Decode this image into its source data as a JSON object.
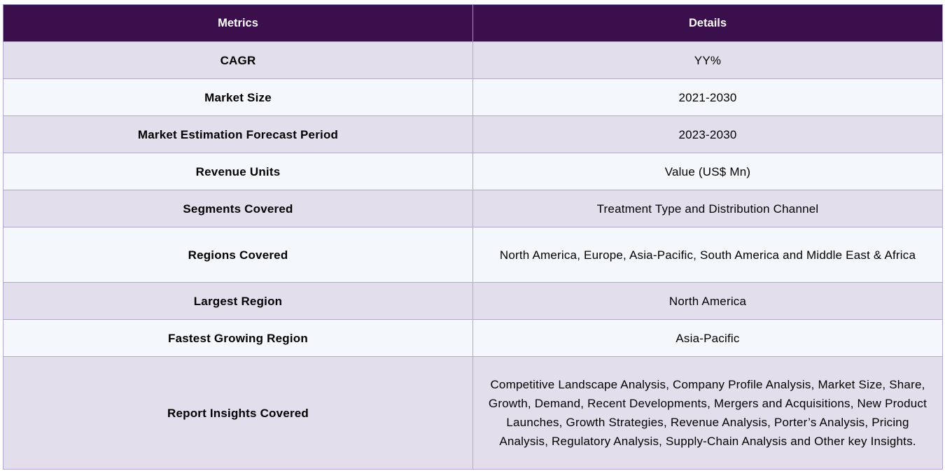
{
  "table": {
    "headers": {
      "metrics": "Metrics",
      "details": "Details"
    },
    "rows": [
      {
        "metric": "CAGR",
        "detail": "YY%"
      },
      {
        "metric": "Market Size",
        "detail": "2021-2030"
      },
      {
        "metric": "Market Estimation Forecast Period",
        "detail": "2023-2030"
      },
      {
        "metric": "Revenue Units",
        "detail": "Value (US$ Mn)"
      },
      {
        "metric": "Segments Covered",
        "detail": "Treatment Type and Distribution Channel"
      },
      {
        "metric": "Regions Covered",
        "detail": "North America, Europe, Asia-Pacific, South America and Middle East & Africa"
      },
      {
        "metric": "Largest Region",
        "detail": "North America"
      },
      {
        "metric": "Fastest Growing Region",
        "detail": "Asia-Pacific"
      },
      {
        "metric": "Report Insights Covered",
        "detail": "Competitive Landscape Analysis, Company Profile Analysis, Market Size, Share, Growth, Demand, Recent Developments, Mergers and Acquisitions, New Product Launches, Growth Strategies, Revenue Analysis, Porter’s Analysis, Pricing Analysis, Regulatory Analysis, Supply-Chain Analysis and Other key Insights."
      }
    ]
  }
}
